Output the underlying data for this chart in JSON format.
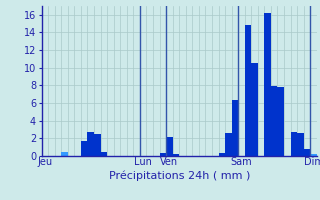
{
  "xlabel": "Précipitations 24h ( mm )",
  "background_color": "#ceeaea",
  "bar_color_dark": "#0033cc",
  "bar_color_light": "#3399ff",
  "ylim": [
    0,
    17
  ],
  "yticks": [
    0,
    2,
    4,
    6,
    8,
    10,
    12,
    14,
    16
  ],
  "day_labels": [
    "Jeu",
    "Lun",
    "Ven",
    "Sam",
    "Dim"
  ],
  "day_positions": [
    0,
    15,
    19,
    30,
    41
  ],
  "values": [
    0,
    0,
    0,
    0.5,
    0,
    0,
    1.7,
    2.7,
    2.5,
    0.5,
    0,
    0,
    0,
    0,
    0,
    0,
    0,
    0,
    0.3,
    2.1,
    0.2,
    0,
    0,
    0,
    0,
    0,
    0,
    0.3,
    2.6,
    6.4,
    0,
    14.9,
    10.5,
    0,
    16.2,
    7.9,
    7.8,
    0,
    2.7,
    2.6,
    0.8,
    0.2
  ],
  "dark_bar_indices": [
    6,
    7,
    8,
    9,
    18,
    19,
    20,
    27,
    28,
    29,
    31,
    32,
    34,
    35,
    36,
    38,
    39,
    40
  ],
  "vline_positions": [
    15,
    19,
    30,
    41
  ],
  "grid_color": "#aacaca",
  "vline_color": "#3355aa",
  "tick_color": "#2222aa",
  "spine_color": "#2222aa",
  "xlabel_fontsize": 8,
  "tick_fontsize": 7
}
